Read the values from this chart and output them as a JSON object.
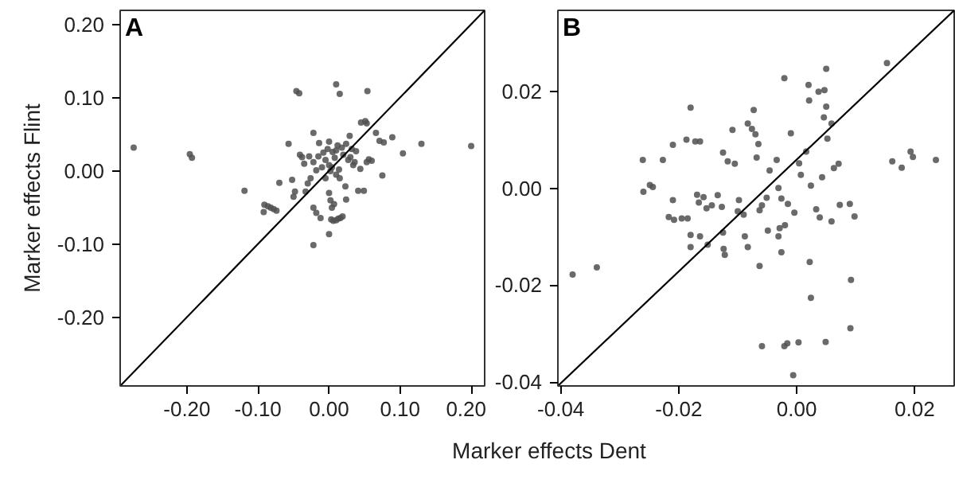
{
  "chart_data": [
    {
      "type": "scatter",
      "title": "A",
      "xlabel": "Marker effects Dent",
      "ylabel": "Marker effects Flint",
      "grid": false,
      "xlim": [
        -0.294,
        0.219
      ],
      "ylim": [
        -0.293,
        0.219
      ],
      "xticks": [
        {
          "value": -0.2,
          "label": "-0.20"
        },
        {
          "value": -0.1,
          "label": "-0.10"
        },
        {
          "value": 0,
          "label": "0.00"
        },
        {
          "value": 0.1,
          "label": "0.10"
        },
        {
          "value": 0.2,
          "label": "0.20"
        }
      ],
      "yticks": [
        {
          "value": -0.2,
          "label": "-0.20"
        },
        {
          "value": -0.1,
          "label": "-0.10"
        },
        {
          "value": 0,
          "label": "0.00"
        },
        {
          "value": 0.1,
          "label": "0.10"
        },
        {
          "value": 0.2,
          "label": "0.20"
        }
      ],
      "series": [
        {
          "marker": "circle",
          "color": "#505050",
          "x": [
            -0.275,
            -0.196,
            -0.193,
            -0.119,
            -0.091,
            -0.086,
            -0.082,
            -0.078,
            -0.074,
            -0.092,
            -0.07,
            -0.057,
            -0.052,
            -0.048,
            -0.05,
            -0.046,
            -0.042,
            -0.041,
            -0.038,
            -0.035,
            -0.03,
            -0.033,
            -0.026,
            -0.022,
            -0.022,
            -0.018,
            -0.015,
            -0.022,
            -0.022,
            -0.018,
            -0.012,
            -0.008,
            -0.005,
            -0.002,
            0.0,
            0.002,
            0.004,
            0.0,
            0.002,
            0.004,
            0.007,
            0.0,
            0.003,
            0.006,
            0.01,
            0.013,
            0.016,
            0.019,
            0.008,
            0.01,
            0.012,
            0.01,
            0.015,
            0.018,
            0.02,
            0.024,
            0.023,
            0.029,
            0.024,
            0.03,
            0.034,
            0.038,
            0.044,
            0.041,
            0.049,
            0.045,
            0.051,
            0.053,
            0.056,
            0.053,
            0.06,
            0.054,
            0.066,
            0.071,
            0.077,
            0.075,
            0.089,
            0.104,
            0.13,
            0.2,
            0.01,
            0.015,
            -0.01,
            -0.005,
            0.005,
            0.027,
            0.032,
            0.036,
            -0.028,
            -0.014,
            0.014,
            0.0
          ],
          "values": [
            0.032,
            0.023,
            0.018,
            -0.027,
            -0.046,
            -0.048,
            -0.05,
            -0.052,
            -0.054,
            -0.056,
            -0.016,
            0.037,
            -0.012,
            -0.028,
            -0.035,
            0.109,
            0.106,
            0.022,
            0.019,
            0.01,
            -0.017,
            -0.028,
            -0.01,
            0.052,
            0.012,
            0.001,
            0.02,
            -0.05,
            -0.101,
            -0.057,
            -0.064,
            0.025,
            0.015,
            0.03,
            0.008,
            0.0,
            0.005,
            -0.03,
            -0.04,
            -0.05,
            -0.045,
            -0.086,
            -0.066,
            -0.068,
            -0.067,
            -0.065,
            -0.064,
            -0.062,
            0.018,
            0.028,
            0.035,
            0.118,
            0.105,
            0.032,
            0.022,
            -0.039,
            -0.021,
            0.048,
            0.037,
            0.019,
            0.008,
            0.027,
            0.003,
            -0.027,
            -0.027,
            0.066,
            0.068,
            0.065,
            0.016,
            0.012,
            0.014,
            0.109,
            0.052,
            0.041,
            0.039,
            -0.006,
            0.046,
            0.024,
            0.037,
            0.034,
            -0.005,
            -0.01,
            0.005,
            -0.01,
            0.026,
            0.015,
            0.03,
            0.012,
            0.02,
            0.038,
            0.002,
            0.04
          ]
        },
        {
          "type": "line",
          "color": "#000000",
          "x": [
            -0.294,
            0.219
          ],
          "values": [
            -0.293,
            0.219
          ]
        }
      ]
    },
    {
      "type": "scatter",
      "title": "B",
      "grid": false,
      "xlim": [
        -0.0405,
        0.0267
      ],
      "ylim": [
        -0.0408,
        0.0368
      ],
      "xticks": [
        {
          "value": -0.04,
          "label": "-0.04"
        },
        {
          "value": -0.02,
          "label": "-0.02"
        },
        {
          "value": 0,
          "label": "0.00"
        },
        {
          "value": 0.02,
          "label": "0.02"
        }
      ],
      "yticks": [
        {
          "value": -0.04,
          "label": "-0.04"
        },
        {
          "value": -0.02,
          "label": "-0.02"
        },
        {
          "value": 0,
          "label": "0.00"
        },
        {
          "value": 0.02,
          "label": "0.02"
        }
      ],
      "series": [
        {
          "marker": "circle",
          "color": "#505050",
          "x": [
            -0.038,
            -0.0339,
            -0.0261,
            -0.026,
            -0.0249,
            -0.0244,
            -0.0227,
            -0.0217,
            -0.0208,
            -0.021,
            -0.021,
            -0.0195,
            -0.0185,
            -0.0187,
            -0.018,
            -0.018,
            -0.018,
            -0.0172,
            -0.0164,
            -0.0169,
            -0.0166,
            -0.0164,
            -0.0158,
            -0.0153,
            -0.0151,
            -0.0144,
            -0.0134,
            -0.0127,
            -0.0125,
            -0.0124,
            -0.0122,
            -0.0125,
            -0.0117,
            -0.0105,
            -0.0109,
            -0.01,
            -0.0098,
            -0.009,
            -0.0083,
            -0.0076,
            -0.0073,
            -0.007,
            -0.0068,
            -0.0065,
            -0.0063,
            -0.0059,
            -0.0051,
            -0.0049,
            -0.0046,
            -0.0034,
            -0.0031,
            -0.0026,
            -0.0021,
            -0.002,
            -0.0015,
            -0.001,
            -0.0004,
            0.0004,
            0.0007,
            0.0016,
            0.0021,
            0.0022,
            0.0024,
            0.0024,
            0.0033,
            0.0039,
            0.0043,
            0.0046,
            0.0047,
            0.0052,
            0.0059,
            0.0059,
            0.0063,
            0.0071,
            0.0073,
            0.009,
            0.0092,
            0.0091,
            0.0098,
            0.0153,
            0.0162,
            0.0178,
            0.0193,
            0.0197,
            0.0236,
            -0.0021,
            -0.0016,
            0.0003,
            -0.0006,
            0.0049,
            -0.0059,
            0.005,
            0.002,
            0.0037,
            0.005,
            -0.0088,
            -0.0083,
            -0.0063,
            -0.0031,
            -0.0029,
            -0.0026
          ],
          "values": [
            -0.0178,
            -0.0163,
            0.0059,
            -0.0007,
            0.0007,
            0.0003,
            0.0059,
            -0.0059,
            -0.0065,
            0.009,
            -0.0024,
            -0.0062,
            -0.0062,
            0.0101,
            0.0167,
            -0.0096,
            -0.0121,
            0.0097,
            0.0097,
            -0.0013,
            -0.0029,
            -0.0099,
            -0.0018,
            -0.0041,
            -0.0116,
            -0.0035,
            -0.0014,
            -0.0038,
            -0.0091,
            -0.0125,
            -0.0137,
            0.0074,
            0.0056,
            0.0051,
            0.0121,
            -0.0047,
            -0.0024,
            -0.0054,
            0.0134,
            0.0123,
            0.0162,
            0.0112,
            0.0064,
            0.0092,
            -0.0045,
            -0.0035,
            -0.0019,
            -0.0087,
            0.0037,
            0.0059,
            0.0001,
            -0.0021,
            0.0228,
            -0.0076,
            -0.0032,
            0.0114,
            -0.005,
            0.0052,
            0.0028,
            0.0076,
            0.0182,
            -0.0152,
            -0.0226,
            0.0006,
            -0.0043,
            -0.006,
            0.0023,
            0.0147,
            0.0203,
            0.0103,
            -0.0068,
            0.0134,
            0.0042,
            0.0051,
            -0.0034,
            -0.0032,
            -0.0189,
            -0.0289,
            -0.0058,
            0.0259,
            0.0056,
            0.0043,
            0.0076,
            0.0065,
            0.0059,
            -0.0326,
            -0.032,
            -0.0318,
            -0.0386,
            -0.0317,
            -0.0326,
            0.0169,
            0.0214,
            0.02,
            0.0247,
            -0.0099,
            -0.0121,
            -0.016,
            -0.0099,
            -0.0082,
            -0.0132
          ]
        },
        {
          "type": "line",
          "color": "#000000",
          "x": [
            -0.0405,
            0.0267
          ],
          "values": [
            -0.0408,
            0.0368
          ]
        }
      ]
    }
  ]
}
